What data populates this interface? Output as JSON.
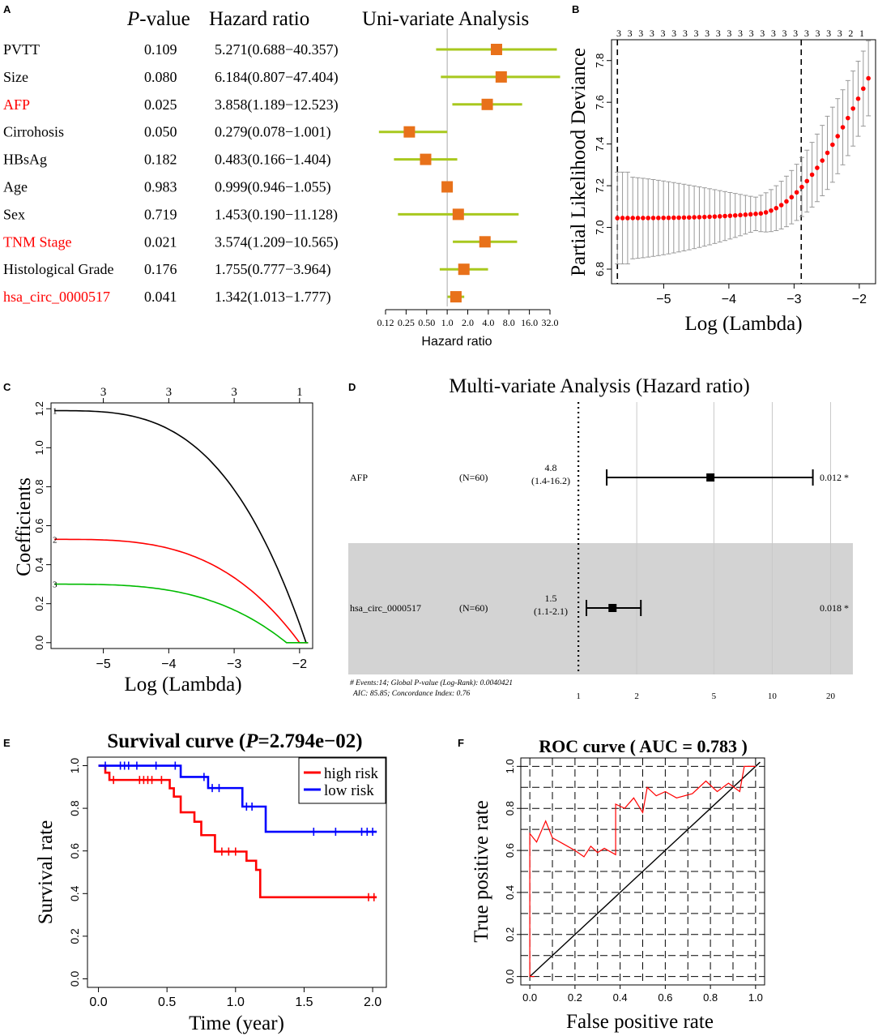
{
  "panel_letters": [
    "A",
    "B",
    "C",
    "D",
    "E",
    "F"
  ],
  "chart_data": [
    {
      "panel": "A",
      "type": "forest",
      "title": "Uni-variate Analysis",
      "col_pvalue_prefix": "P",
      "col_pvalue_suffix": "-value",
      "col_hr": "Hazard ratio",
      "xlabel": "Hazard ratio",
      "x_scale": "log2",
      "x_ticks": [
        "0.12",
        "0.25",
        "0.50",
        "1.0",
        "2.0",
        "4.0",
        "8.0",
        "16.0",
        "32.0"
      ],
      "x_tick_values": [
        0.125,
        0.25,
        0.5,
        1,
        2,
        4,
        8,
        16,
        32
      ],
      "reference_line": 1,
      "rows": [
        {
          "label": "PVTT",
          "p": "0.109",
          "hr_text": "5.271(0.688−40.357)",
          "hr": 5.271,
          "lo": 0.688,
          "hi": 40.357,
          "highlight": false
        },
        {
          "label": "Size",
          "p": "0.080",
          "hr_text": "6.184(0.807−47.404)",
          "hr": 6.184,
          "lo": 0.807,
          "hi": 47.404,
          "highlight": false
        },
        {
          "label": "AFP",
          "p": "0.025",
          "hr_text": "3.858(1.189−12.523)",
          "hr": 3.858,
          "lo": 1.189,
          "hi": 12.523,
          "highlight": true
        },
        {
          "label": "Cirrohosis",
          "p": "0.050",
          "hr_text": "0.279(0.078−1.001)",
          "hr": 0.279,
          "lo": 0.078,
          "hi": 1.001,
          "highlight": false
        },
        {
          "label": "HBsAg",
          "p": "0.182",
          "hr_text": "0.483(0.166−1.404)",
          "hr": 0.483,
          "lo": 0.166,
          "hi": 1.404,
          "highlight": false
        },
        {
          "label": "Age",
          "p": "0.983",
          "hr_text": "0.999(0.946−1.055)",
          "hr": 0.999,
          "lo": 0.946,
          "hi": 1.055,
          "highlight": false
        },
        {
          "label": "Sex",
          "p": "0.719",
          "hr_text": "1.453(0.190−11.128)",
          "hr": 1.453,
          "lo": 0.19,
          "hi": 11.128,
          "highlight": false
        },
        {
          "label": "TNM Stage",
          "p": "0.021",
          "hr_text": "3.574(1.209−10.565)",
          "hr": 3.574,
          "lo": 1.209,
          "hi": 10.565,
          "highlight": true
        },
        {
          "label": "Histological Grade",
          "p": "0.176",
          "hr_text": "1.755(0.777−3.964)",
          "hr": 1.755,
          "lo": 0.777,
          "hi": 3.964,
          "highlight": false
        },
        {
          "label": "hsa_circ_0000517",
          "p": "0.041",
          "hr_text": "1.342(1.013−1.777)",
          "hr": 1.342,
          "lo": 1.013,
          "hi": 1.777,
          "highlight": true
        }
      ],
      "colors": {
        "ci": "#a8c81e",
        "point": "#e8711a",
        "highlight_text": "#ff0000",
        "refline": "#aaaaaa"
      }
    },
    {
      "panel": "B",
      "type": "scatter-errorbar",
      "ylabel": "Partial Likelihood Deviance",
      "xlabel": "Log (Lambda)",
      "xlim": [
        -5.8,
        -1.75
      ],
      "ylim": [
        6.73,
        7.9
      ],
      "x_ticks": [
        -5,
        -4,
        -3,
        -2
      ],
      "x_tick_labels": [
        "−5",
        "−4",
        "−3",
        "−2"
      ],
      "y_ticks": [
        6.8,
        7.0,
        7.2,
        7.4,
        7.6,
        7.8
      ],
      "y_tick_labels": [
        "6.8",
        "7.0",
        "7.2",
        "7.4",
        "7.6",
        "7.8"
      ],
      "top_axis_labels": [
        "3",
        "3",
        "3",
        "3",
        "3",
        "3",
        "3",
        "3",
        "3",
        "3",
        "3",
        "3",
        "3",
        "3",
        "3",
        "3",
        "3",
        "3",
        "3",
        "3",
        "3",
        "2",
        "1"
      ],
      "vlines": [
        -5.71,
        -2.89
      ],
      "points": {
        "x_start": -5.71,
        "x_end": -1.86,
        "n": 50,
        "y_min": 7.045,
        "y_max": 7.715
      },
      "colors": {
        "point": "#ff0000",
        "error": "#999999"
      }
    },
    {
      "panel": "C",
      "type": "line",
      "ylabel": "Coefficients",
      "xlabel": "Log (Lambda)",
      "xlim": [
        -5.8,
        -1.8
      ],
      "ylim": [
        -0.03,
        1.23
      ],
      "x_ticks": [
        -5,
        -4,
        -3,
        -2
      ],
      "x_tick_labels": [
        "−5",
        "−4",
        "−3",
        "−2"
      ],
      "y_ticks": [
        0.0,
        0.2,
        0.4,
        0.6,
        0.8,
        1.0,
        1.2
      ],
      "y_tick_labels": [
        "0.0",
        "0.2",
        "0.4",
        "0.6",
        "0.8",
        "1.0",
        "1.2"
      ],
      "top_axis_ticks": [
        -5,
        -4,
        -3,
        -2
      ],
      "top_axis_labels": [
        "3",
        "3",
        "3",
        "1"
      ],
      "series": [
        {
          "name": "1",
          "color": "#000000",
          "start": 1.19,
          "end_lambda": -1.9
        },
        {
          "name": "2",
          "color": "#ff0000",
          "start": 0.53,
          "end_lambda": -2.0
        },
        {
          "name": "3",
          "color": "#00bb00",
          "start": 0.3,
          "end_lambda": -2.2
        }
      ]
    },
    {
      "panel": "D",
      "type": "forest",
      "title": "Multi-variate Analysis (Hazard ratio)",
      "x_scale": "log",
      "x_ticks": [
        "1",
        "2",
        "5",
        "10",
        "20"
      ],
      "x_tick_values": [
        1,
        2,
        5,
        10,
        20
      ],
      "xlim": [
        0.98,
        23
      ],
      "rows": [
        {
          "label": "AFP",
          "n": "(N=60)",
          "hr_text": "4.8",
          "ci_text": "(1.4-16.2)",
          "hr": 4.8,
          "lo": 1.4,
          "hi": 16.2,
          "p": "0.012 *"
        },
        {
          "label": "hsa_circ_0000517",
          "n": "(N=60)",
          "hr_text": "1.5",
          "ci_text": "(1.1-2.1)",
          "hr": 1.5,
          "lo": 1.1,
          "hi": 2.1,
          "p": "0.018 *"
        }
      ],
      "footnote_line1": "# Events:14; Global P-value (Log-Rank): 0.0040421",
      "footnote_line2": "AIC: 85.85; Concordance Index: 0.76",
      "colors": {
        "band": "#d3d3d3",
        "mark": "#000000",
        "grid": "#c8c8c8"
      }
    },
    {
      "panel": "E",
      "type": "step",
      "title_prefix": "Survival curve (",
      "title_p": "P",
      "title_suffix": "=2.794e−02)",
      "xlabel": "Time (year)",
      "ylabel": "Survival rate",
      "xlim": [
        -0.08,
        2.1
      ],
      "ylim": [
        -0.04,
        1.04
      ],
      "x_ticks": [
        0,
        0.5,
        1,
        1.5,
        2
      ],
      "x_tick_labels": [
        "0.0",
        "0.5",
        "1.0",
        "1.5",
        "2.0"
      ],
      "y_ticks": [
        0,
        0.2,
        0.4,
        0.6,
        0.8,
        1.0
      ],
      "y_tick_labels": [
        "0.0",
        "0.2",
        "0.4",
        "0.6",
        "0.8",
        "1.0"
      ],
      "legend": [
        "high risk",
        "low risk"
      ],
      "series": [
        {
          "name": "high risk",
          "color": "#ff0000",
          "steps": [
            [
              0,
              1.0
            ],
            [
              0.05,
              0.967
            ],
            [
              0.08,
              0.933
            ],
            [
              0.52,
              0.894
            ],
            [
              0.55,
              0.855
            ],
            [
              0.6,
              0.781
            ],
            [
              0.7,
              0.737
            ],
            [
              0.75,
              0.674
            ],
            [
              0.85,
              0.597
            ],
            [
              1.08,
              0.554
            ],
            [
              1.15,
              0.511
            ],
            [
              1.18,
              0.383
            ],
            [
              2.03,
              0.383
            ]
          ],
          "censors": [
            [
              0.11,
              0.933
            ],
            [
              0.3,
              0.933
            ],
            [
              0.33,
              0.933
            ],
            [
              0.36,
              0.933
            ],
            [
              0.39,
              0.933
            ],
            [
              0.46,
              0.933
            ],
            [
              0.9,
              0.597
            ],
            [
              0.95,
              0.597
            ],
            [
              1.0,
              0.597
            ],
            [
              1.97,
              0.383
            ],
            [
              2.01,
              0.383
            ]
          ]
        },
        {
          "name": "low risk",
          "color": "#0000ff",
          "steps": [
            [
              0,
              1.0
            ],
            [
              0.6,
              0.947
            ],
            [
              0.8,
              0.895
            ],
            [
              1.05,
              0.808
            ],
            [
              1.22,
              0.69
            ],
            [
              2.03,
              0.69
            ]
          ],
          "censors": [
            [
              0.05,
              1.0
            ],
            [
              0.16,
              1.0
            ],
            [
              0.19,
              1.0
            ],
            [
              0.22,
              1.0
            ],
            [
              0.28,
              1.0
            ],
            [
              0.42,
              1.0
            ],
            [
              0.56,
              1.0
            ],
            [
              0.77,
              0.947
            ],
            [
              0.83,
              0.895
            ],
            [
              0.88,
              0.895
            ],
            [
              1.08,
              0.808
            ],
            [
              1.12,
              0.808
            ],
            [
              1.57,
              0.69
            ],
            [
              1.73,
              0.69
            ],
            [
              1.92,
              0.69
            ],
            [
              1.96,
              0.69
            ],
            [
              2.0,
              0.69
            ]
          ]
        }
      ]
    },
    {
      "panel": "F",
      "type": "line",
      "title_prefix": "ROC curve ( AUC = ",
      "title_value": "0.783",
      "title_suffix": " )",
      "xlabel": "False positive rate",
      "ylabel": "True positive rate",
      "xlim": [
        -0.04,
        1.04
      ],
      "ylim": [
        -0.04,
        1.04
      ],
      "x_ticks": [
        0,
        0.2,
        0.4,
        0.6,
        0.8,
        1.0
      ],
      "x_tick_labels": [
        "0.0",
        "0.2",
        "0.4",
        "0.6",
        "0.8",
        "1.0"
      ],
      "y_ticks": [
        0,
        0.2,
        0.4,
        0.6,
        0.8,
        1.0
      ],
      "y_tick_labels": [
        "0.0",
        "0.2",
        "0.4",
        "0.6",
        "0.8",
        "1.0"
      ],
      "grid_step": 0.1,
      "roc": [
        [
          0.02,
          0.0
        ],
        [
          0.0,
          0.0
        ],
        [
          0.0,
          0.68
        ],
        [
          0.03,
          0.64
        ],
        [
          0.07,
          0.74
        ],
        [
          0.1,
          0.66
        ],
        [
          0.15,
          0.63
        ],
        [
          0.2,
          0.6
        ],
        [
          0.24,
          0.57
        ],
        [
          0.27,
          0.62
        ],
        [
          0.3,
          0.59
        ],
        [
          0.33,
          0.61
        ],
        [
          0.38,
          0.58
        ],
        [
          0.38,
          0.82
        ],
        [
          0.42,
          0.8
        ],
        [
          0.46,
          0.85
        ],
        [
          0.5,
          0.78
        ],
        [
          0.52,
          0.9
        ],
        [
          0.56,
          0.86
        ],
        [
          0.6,
          0.88
        ],
        [
          0.65,
          0.85
        ],
        [
          0.72,
          0.87
        ],
        [
          0.78,
          0.93
        ],
        [
          0.83,
          0.88
        ],
        [
          0.88,
          0.92
        ],
        [
          0.93,
          0.88
        ],
        [
          0.95,
          1.0
        ],
        [
          1.0,
          1.0
        ]
      ],
      "diagonal": [
        [
          0,
          0
        ],
        [
          1.02,
          1.02
        ]
      ],
      "colors": {
        "roc": "#ff0000",
        "diag": "#000000",
        "grid": "#000000"
      }
    }
  ]
}
